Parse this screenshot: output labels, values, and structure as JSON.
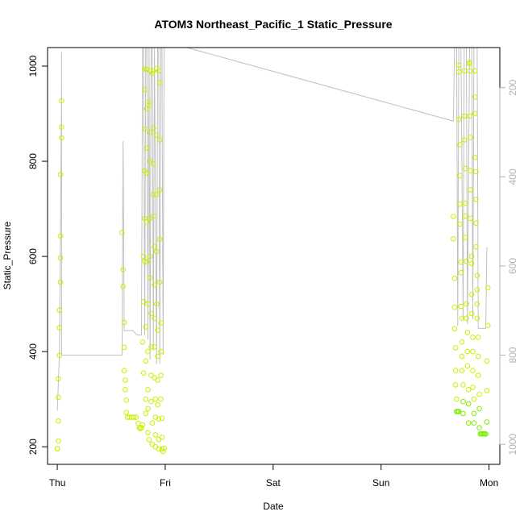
{
  "chart_data": {
    "type": "scatter",
    "title": "ATOM3 Northeast_Pacific_1 Static_Pressure",
    "xlabel": "Date",
    "ylabel": "Static_Pressure",
    "x_ticks": [
      "Thu",
      "Fri",
      "Sat",
      "Sun",
      "Mon"
    ],
    "x_range": [
      -0.09,
      4.1
    ],
    "y_ticks": [
      200,
      400,
      600,
      800,
      1000
    ],
    "ylim": [
      163,
      1039
    ],
    "y2_ticks": [
      200,
      400,
      600,
      800,
      1000
    ],
    "y2_range": [
      110,
      1045
    ],
    "colors": {
      "points_low": "#c8f000",
      "points_high": "#7cf000",
      "line": "#c0c0c0",
      "axis": "#000000",
      "axis_right": "#b3b3b3"
    },
    "series": [
      {
        "name": "",
        "kind": "points",
        "points": [
          [
            0.0,
            196
          ],
          [
            0.0,
            196
          ],
          [
            0.01,
            212
          ],
          [
            0.01,
            254
          ],
          [
            0.01,
            304
          ],
          [
            0.01,
            343
          ],
          [
            0.02,
            392
          ],
          [
            0.02,
            450
          ],
          [
            0.02,
            487
          ],
          [
            0.03,
            546
          ],
          [
            0.03,
            597
          ],
          [
            0.03,
            643
          ],
          [
            0.03,
            772
          ],
          [
            0.04,
            849
          ],
          [
            0.04,
            872
          ],
          [
            0.04,
            927
          ],
          [
            0.6,
            650
          ],
          [
            0.61,
            572
          ],
          [
            0.61,
            537
          ],
          [
            0.62,
            461
          ],
          [
            0.62,
            409
          ],
          [
            0.62,
            360
          ],
          [
            0.63,
            340
          ],
          [
            0.63,
            320
          ],
          [
            0.64,
            298
          ],
          [
            0.64,
            272
          ],
          [
            0.65,
            262
          ],
          [
            0.67,
            262
          ],
          [
            0.69,
            262
          ],
          [
            0.71,
            262
          ],
          [
            0.73,
            262
          ],
          [
            0.75,
            249
          ],
          [
            0.76,
            240
          ],
          [
            0.77,
            238
          ],
          [
            0.78,
            240
          ],
          [
            0.79,
            246
          ],
          [
            0.79,
            420
          ],
          [
            0.8,
            355
          ],
          [
            0.8,
            600
          ],
          [
            0.8,
            505
          ],
          [
            0.81,
            994
          ],
          [
            0.81,
            950
          ],
          [
            0.81,
            868
          ],
          [
            0.81,
            780
          ],
          [
            0.81,
            680
          ],
          [
            0.81,
            590
          ],
          [
            0.82,
            452
          ],
          [
            0.82,
            380
          ],
          [
            0.82,
            300
          ],
          [
            0.82,
            270
          ],
          [
            0.83,
            993
          ],
          [
            0.83,
            910
          ],
          [
            0.83,
            828
          ],
          [
            0.83,
            775
          ],
          [
            0.83,
            672
          ],
          [
            0.83,
            588
          ],
          [
            0.84,
            500
          ],
          [
            0.84,
            400
          ],
          [
            0.84,
            320
          ],
          [
            0.84,
            280
          ],
          [
            0.84,
            230
          ],
          [
            0.85,
            215
          ],
          [
            0.85,
            925
          ],
          [
            0.85,
            918
          ],
          [
            0.86,
            990
          ],
          [
            0.86,
            860
          ],
          [
            0.86,
            800
          ],
          [
            0.86,
            680
          ],
          [
            0.86,
            600
          ],
          [
            0.86,
            555
          ],
          [
            0.87,
            480
          ],
          [
            0.87,
            410
          ],
          [
            0.87,
            350
          ],
          [
            0.87,
            295
          ],
          [
            0.88,
            250
          ],
          [
            0.88,
            205
          ],
          [
            0.88,
            985
          ],
          [
            0.89,
            990
          ],
          [
            0.89,
            870
          ],
          [
            0.89,
            795
          ],
          [
            0.89,
            730
          ],
          [
            0.89,
            685
          ],
          [
            0.9,
            620
          ],
          [
            0.9,
            540
          ],
          [
            0.9,
            470
          ],
          [
            0.9,
            410
          ],
          [
            0.9,
            345
          ],
          [
            0.91,
            300
          ],
          [
            0.91,
            262
          ],
          [
            0.91,
            225
          ],
          [
            0.91,
            200
          ],
          [
            0.92,
            995
          ],
          [
            0.92,
            855
          ],
          [
            0.92,
            730
          ],
          [
            0.92,
            610
          ],
          [
            0.92,
            500
          ],
          [
            0.93,
            445
          ],
          [
            0.93,
            390
          ],
          [
            0.93,
            340
          ],
          [
            0.93,
            288
          ],
          [
            0.94,
            258
          ],
          [
            0.94,
            215
          ],
          [
            0.94,
            195
          ],
          [
            0.94,
            990
          ],
          [
            0.95,
            965
          ],
          [
            0.95,
            845
          ],
          [
            0.95,
            740
          ],
          [
            0.95,
            636
          ],
          [
            0.95,
            546
          ],
          [
            0.96,
            460
          ],
          [
            0.96,
            400
          ],
          [
            0.96,
            350
          ],
          [
            0.96,
            300
          ],
          [
            0.97,
            260
          ],
          [
            0.97,
            220
          ],
          [
            0.97,
            195
          ],
          [
            0.98,
            190
          ],
          [
            0.99,
            197
          ],
          [
            3.67,
            684
          ],
          [
            3.67,
            637
          ],
          [
            3.68,
            554
          ],
          [
            3.68,
            493
          ],
          [
            3.68,
            448
          ],
          [
            3.69,
            408
          ],
          [
            3.69,
            360
          ],
          [
            3.69,
            330
          ],
          [
            3.7,
            300
          ],
          [
            3.7,
            274
          ],
          [
            3.71,
            274
          ],
          [
            3.71,
            274
          ],
          [
            3.72,
            274
          ],
          [
            3.72,
            1002
          ],
          [
            3.72,
            988
          ],
          [
            3.72,
            888
          ],
          [
            3.73,
            835
          ],
          [
            3.73,
            770
          ],
          [
            3.73,
            710
          ],
          [
            3.73,
            668
          ],
          [
            3.74,
            588
          ],
          [
            3.74,
            566
          ],
          [
            3.74,
            495
          ],
          [
            3.75,
            470
          ],
          [
            3.75,
            420
          ],
          [
            3.75,
            390
          ],
          [
            3.75,
            360
          ],
          [
            3.76,
            330
          ],
          [
            3.76,
            295
          ],
          [
            3.76,
            270
          ],
          [
            3.77,
            990
          ],
          [
            3.77,
            895
          ],
          [
            3.77,
            845
          ],
          [
            3.78,
            785
          ],
          [
            3.78,
            712
          ],
          [
            3.78,
            685
          ],
          [
            3.78,
            640
          ],
          [
            3.79,
            590
          ],
          [
            3.79,
            500
          ],
          [
            3.79,
            470
          ],
          [
            3.8,
            440
          ],
          [
            3.8,
            400
          ],
          [
            3.8,
            370
          ],
          [
            3.81,
            320
          ],
          [
            3.81,
            290
          ],
          [
            3.81,
            250
          ],
          [
            3.82,
            1008
          ],
          [
            3.82,
            1005
          ],
          [
            3.82,
            990
          ],
          [
            3.82,
            895
          ],
          [
            3.83,
            850
          ],
          [
            3.83,
            780
          ],
          [
            3.83,
            740
          ],
          [
            3.83,
            680
          ],
          [
            3.84,
            600
          ],
          [
            3.84,
            585
          ],
          [
            3.84,
            520
          ],
          [
            3.84,
            480
          ],
          [
            3.85,
            430
          ],
          [
            3.85,
            400
          ],
          [
            3.85,
            360
          ],
          [
            3.85,
            325
          ],
          [
            3.86,
            300
          ],
          [
            3.86,
            270
          ],
          [
            3.86,
            250
          ],
          [
            3.87,
            990
          ],
          [
            3.87,
            935
          ],
          [
            3.87,
            900
          ],
          [
            3.87,
            808
          ],
          [
            3.88,
            778
          ],
          [
            3.88,
            720
          ],
          [
            3.88,
            670
          ],
          [
            3.88,
            620
          ],
          [
            3.89,
            560
          ],
          [
            3.89,
            530
          ],
          [
            3.89,
            500
          ],
          [
            3.89,
            470
          ],
          [
            3.9,
            430
          ],
          [
            3.9,
            390
          ],
          [
            3.9,
            350
          ],
          [
            3.91,
            310
          ],
          [
            3.91,
            280
          ],
          [
            3.91,
            240
          ],
          [
            3.92,
            227
          ],
          [
            3.93,
            227
          ],
          [
            3.94,
            227
          ],
          [
            3.95,
            227
          ],
          [
            3.96,
            227
          ],
          [
            3.97,
            227
          ],
          [
            3.98,
            252
          ],
          [
            3.98,
            318
          ],
          [
            3.98,
            380
          ],
          [
            3.99,
            455
          ],
          [
            3.99,
            534
          ]
        ]
      },
      {
        "name": "",
        "kind": "line",
        "points": [
          [
            0.0,
            925
          ],
          [
            0.02,
            800
          ],
          [
            0.03,
            500
          ],
          [
            0.04,
            200
          ],
          [
            0.04,
            120
          ],
          [
            0.04,
            800
          ],
          [
            0.55,
            800
          ],
          [
            0.6,
            800
          ],
          [
            0.61,
            320
          ],
          [
            0.62,
            745
          ],
          [
            0.7,
            745
          ],
          [
            0.74,
            755
          ],
          [
            0.75,
            755
          ],
          [
            0.78,
            755
          ],
          [
            0.79,
            110
          ],
          [
            0.8,
            110
          ],
          [
            0.81,
            755
          ],
          [
            0.82,
            110
          ],
          [
            0.83,
            110
          ],
          [
            0.84,
            765
          ],
          [
            0.85,
            110
          ],
          [
            0.86,
            810
          ],
          [
            0.87,
            110
          ],
          [
            0.88,
            110
          ],
          [
            0.89,
            790
          ],
          [
            0.9,
            110
          ],
          [
            0.92,
            820
          ],
          [
            0.93,
            110
          ],
          [
            0.94,
            110
          ],
          [
            0.95,
            820
          ],
          [
            0.96,
            110
          ],
          [
            0.97,
            110
          ],
          [
            0.98,
            800
          ],
          [
            0.99,
            110
          ],
          [
            1.2,
            110
          ],
          [
            3.67,
            275
          ],
          [
            3.68,
            110
          ],
          [
            3.7,
            110
          ],
          [
            3.71,
            735
          ],
          [
            3.72,
            110
          ],
          [
            3.74,
            110
          ],
          [
            3.76,
            720
          ],
          [
            3.77,
            110
          ],
          [
            3.79,
            110
          ],
          [
            3.8,
            730
          ],
          [
            3.82,
            110
          ],
          [
            3.84,
            110
          ],
          [
            3.85,
            720
          ],
          [
            3.86,
            110
          ],
          [
            3.89,
            110
          ],
          [
            3.9,
            740
          ],
          [
            3.96,
            740
          ],
          [
            3.97,
            740
          ],
          [
            3.98,
            560
          ],
          [
            3.99,
            560
          ]
        ]
      }
    ]
  }
}
